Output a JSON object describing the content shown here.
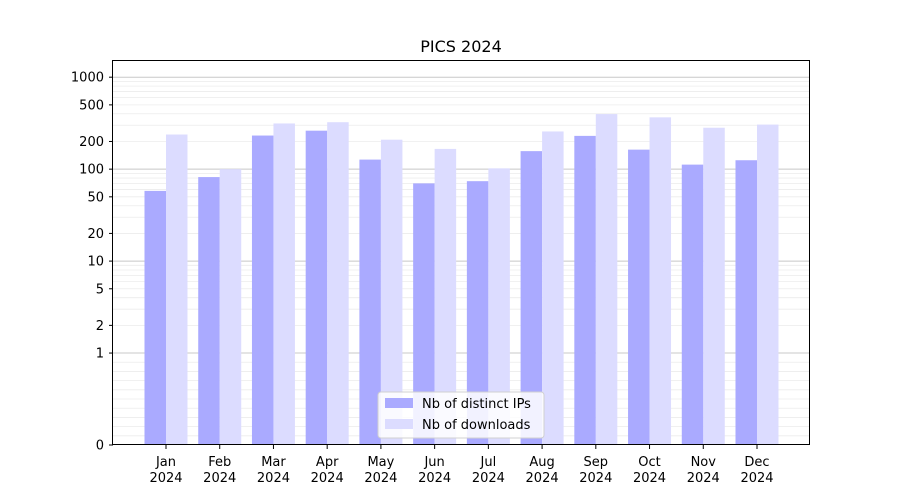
{
  "chart_data": {
    "type": "bar",
    "title": "PICS 2024",
    "xlabel": "",
    "ylabel": "",
    "yscale": "symlog",
    "ylim": [
      0,
      1500
    ],
    "yticks": [
      0,
      1,
      2,
      5,
      10,
      20,
      50,
      100,
      200,
      500,
      1000
    ],
    "grid": true,
    "legend_position": "bottom-center",
    "categories": [
      "Jan\n2024",
      "Feb\n2024",
      "Mar\n2024",
      "Apr\n2024",
      "May\n2024",
      "Jun\n2024",
      "Jul\n2024",
      "Aug\n2024",
      "Sep\n2024",
      "Oct\n2024",
      "Nov\n2024",
      "Dec\n2024"
    ],
    "series": [
      {
        "name": "Nb of distinct IPs",
        "color": "#aaaaff",
        "values": [
          58,
          82,
          232,
          262,
          127,
          70,
          74,
          157,
          230,
          163,
          112,
          125
        ]
      },
      {
        "name": "Nb of downloads",
        "color": "#dcdcff",
        "values": [
          238,
          100,
          314,
          324,
          209,
          166,
          102,
          257,
          397,
          366,
          282,
          305
        ]
      }
    ]
  }
}
